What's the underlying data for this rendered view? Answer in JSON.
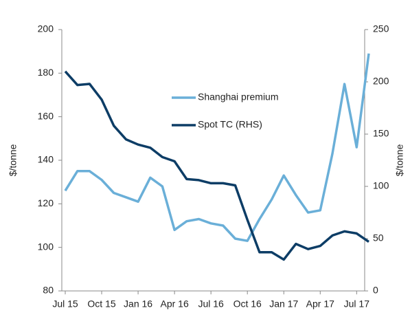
{
  "chart_data": {
    "type": "line",
    "categories": [
      "Jul 15",
      null,
      null,
      "Oct 15",
      null,
      null,
      "Jan 16",
      null,
      null,
      "Apr 16",
      null,
      null,
      "Jul 16",
      null,
      null,
      "Oct 16",
      null,
      null,
      "Jan 17",
      null,
      null,
      "Apr 17",
      null,
      null,
      "Jul 17",
      null
    ],
    "series": [
      {
        "name": "Shanghai premium",
        "color": "#6aafd8",
        "values": [
          126,
          135,
          135,
          131,
          125,
          123,
          121,
          132,
          128,
          108,
          112,
          113,
          111,
          110,
          104,
          103,
          113,
          122,
          133,
          124,
          116,
          117,
          143,
          175,
          146,
          189
        ]
      },
      {
        "name": "Spot TC (RHS)",
        "color": "#0d3d66",
        "axis": "y2",
        "values": [
          210,
          197,
          198,
          183,
          158,
          145,
          140,
          137,
          128,
          124,
          107,
          106,
          103,
          103,
          101,
          68,
          37,
          37,
          30,
          45,
          40,
          43,
          53,
          57,
          55,
          47
        ]
      }
    ],
    "ylabel": "$/tonne",
    "y2label": "$/tonne",
    "ylim": [
      80,
      200
    ],
    "yticks": [
      80,
      100,
      120,
      140,
      160,
      180,
      200
    ],
    "y2lim": [
      0,
      250
    ],
    "y2ticks": [
      0,
      50,
      100,
      150,
      200,
      250
    ]
  }
}
